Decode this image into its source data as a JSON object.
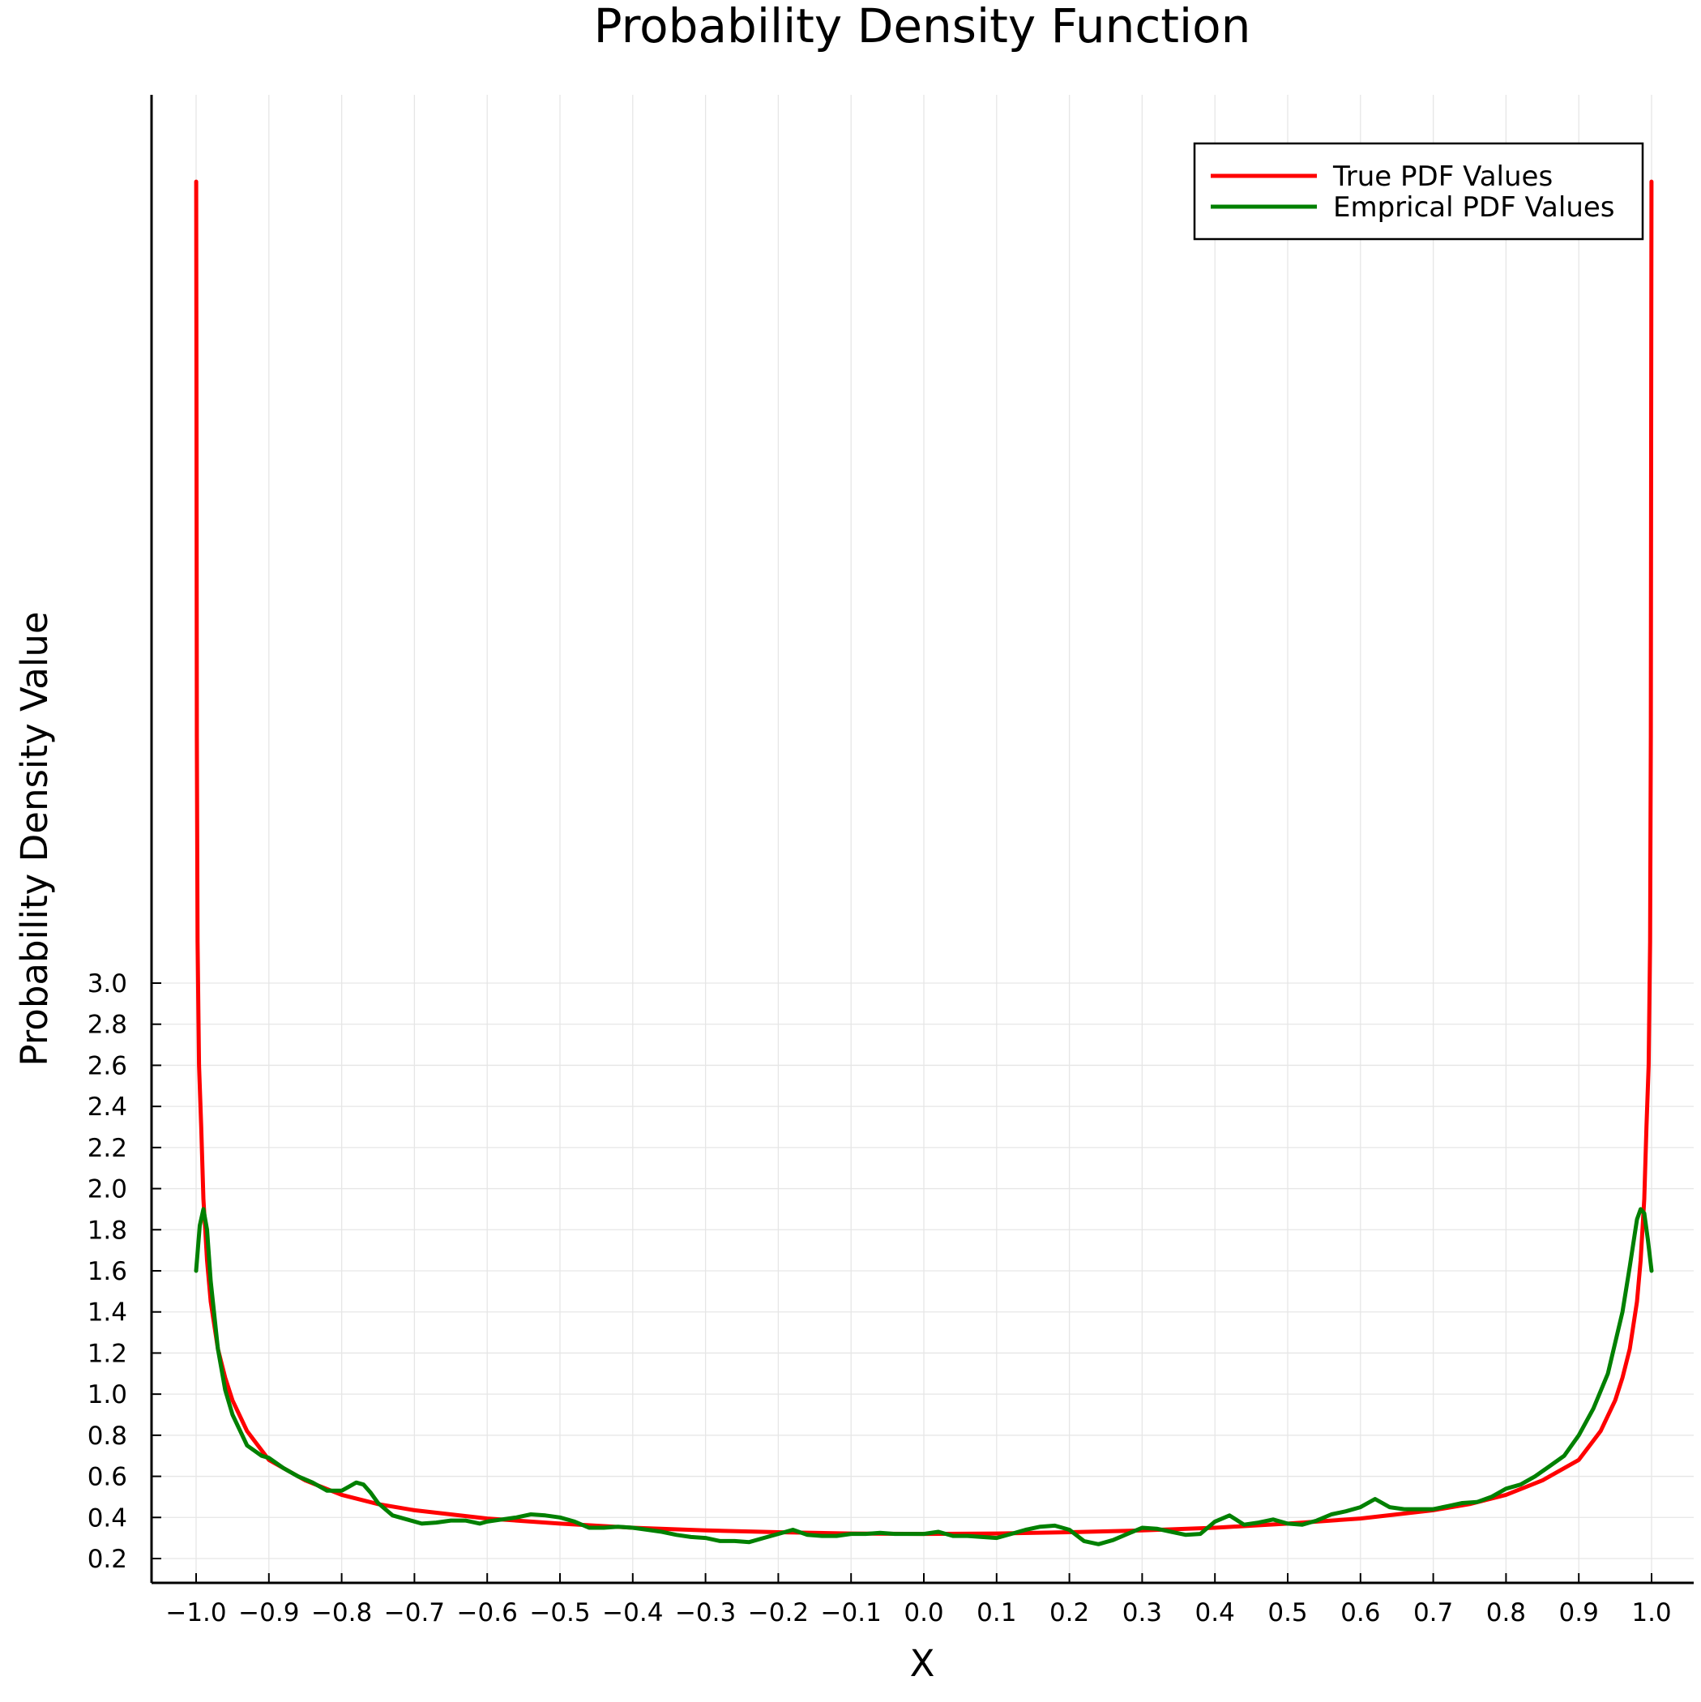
{
  "chart_data": {
    "type": "line",
    "title": "Probability Density Function",
    "xlabel": "X",
    "ylabel": "Probability Density Value",
    "xlim": [
      -1.06,
      1.06
    ],
    "ylim": [
      0.07,
      7.3
    ],
    "grid": true,
    "legend_position": "top-right",
    "x_ticks": [
      "−1.0",
      "−0.9",
      "−0.8",
      "−0.7",
      "−0.6",
      "−0.5",
      "−0.4",
      "−0.3",
      "−0.2",
      "−0.1",
      "0.0",
      "0.1",
      "0.2",
      "0.3",
      "0.4",
      "0.5",
      "0.6",
      "0.7",
      "0.8",
      "0.9",
      "1.0"
    ],
    "y_ticks": [
      "0.2",
      "0.4",
      "0.6",
      "0.8",
      "1.0",
      "1.2",
      "1.4",
      "1.6",
      "1.8",
      "2.0",
      "2.2",
      "2.4",
      "2.6",
      "2.8",
      "3.0"
    ],
    "series": [
      {
        "name": "True PDF Values",
        "color": "#ff0000",
        "x": [
          -0.9999,
          -0.9995,
          -0.999,
          -0.998,
          -0.996,
          -0.993,
          -0.99,
          -0.985,
          -0.98,
          -0.97,
          -0.96,
          -0.95,
          -0.93,
          -0.9,
          -0.85,
          -0.8,
          -0.75,
          -0.7,
          -0.6,
          -0.5,
          -0.4,
          -0.3,
          -0.2,
          -0.1,
          0.0,
          0.1,
          0.2,
          0.3,
          0.4,
          0.5,
          0.6,
          0.7,
          0.75,
          0.8,
          0.85,
          0.9,
          0.93,
          0.95,
          0.96,
          0.97,
          0.98,
          0.985,
          0.99,
          0.993,
          0.996,
          0.998,
          0.999,
          0.9995,
          0.9999
        ],
        "y": [
          6.9,
          6.0,
          4.2,
          3.2,
          2.6,
          2.3,
          1.95,
          1.65,
          1.45,
          1.22,
          1.08,
          0.97,
          0.82,
          0.68,
          0.58,
          0.51,
          0.465,
          0.435,
          0.395,
          0.37,
          0.35,
          0.337,
          0.328,
          0.322,
          0.32,
          0.322,
          0.328,
          0.337,
          0.35,
          0.37,
          0.395,
          0.435,
          0.465,
          0.51,
          0.58,
          0.68,
          0.82,
          0.97,
          1.08,
          1.22,
          1.45,
          1.65,
          1.95,
          2.3,
          2.6,
          3.2,
          4.2,
          6.0,
          6.9
        ]
      },
      {
        "name": "Emprical PDF Values",
        "color": "#008000",
        "x": [
          -1.0,
          -0.995,
          -0.99,
          -0.985,
          -0.98,
          -0.97,
          -0.96,
          -0.95,
          -0.93,
          -0.91,
          -0.9,
          -0.88,
          -0.86,
          -0.84,
          -0.82,
          -0.8,
          -0.79,
          -0.78,
          -0.77,
          -0.76,
          -0.75,
          -0.73,
          -0.71,
          -0.69,
          -0.67,
          -0.65,
          -0.63,
          -0.61,
          -0.6,
          -0.58,
          -0.56,
          -0.54,
          -0.52,
          -0.5,
          -0.48,
          -0.46,
          -0.44,
          -0.42,
          -0.4,
          -0.38,
          -0.36,
          -0.34,
          -0.32,
          -0.3,
          -0.28,
          -0.26,
          -0.24,
          -0.22,
          -0.2,
          -0.18,
          -0.16,
          -0.14,
          -0.12,
          -0.1,
          -0.08,
          -0.06,
          -0.04,
          -0.02,
          0.0,
          0.02,
          0.04,
          0.06,
          0.08,
          0.1,
          0.12,
          0.14,
          0.16,
          0.18,
          0.2,
          0.22,
          0.24,
          0.26,
          0.28,
          0.3,
          0.32,
          0.34,
          0.36,
          0.38,
          0.4,
          0.42,
          0.44,
          0.46,
          0.48,
          0.5,
          0.52,
          0.54,
          0.56,
          0.58,
          0.6,
          0.62,
          0.64,
          0.66,
          0.68,
          0.7,
          0.72,
          0.74,
          0.76,
          0.78,
          0.8,
          0.82,
          0.84,
          0.86,
          0.88,
          0.9,
          0.92,
          0.94,
          0.96,
          0.97,
          0.98,
          0.985,
          0.99,
          0.995,
          1.0
        ],
        "y": [
          1.6,
          1.82,
          1.9,
          1.8,
          1.55,
          1.22,
          1.02,
          0.9,
          0.75,
          0.7,
          0.69,
          0.64,
          0.6,
          0.57,
          0.53,
          0.53,
          0.55,
          0.57,
          0.56,
          0.52,
          0.47,
          0.41,
          0.39,
          0.37,
          0.375,
          0.385,
          0.385,
          0.37,
          0.38,
          0.39,
          0.4,
          0.415,
          0.41,
          0.4,
          0.38,
          0.35,
          0.35,
          0.355,
          0.35,
          0.34,
          0.33,
          0.315,
          0.305,
          0.3,
          0.285,
          0.285,
          0.28,
          0.3,
          0.32,
          0.34,
          0.315,
          0.31,
          0.31,
          0.32,
          0.32,
          0.325,
          0.32,
          0.32,
          0.32,
          0.33,
          0.31,
          0.31,
          0.305,
          0.3,
          0.32,
          0.34,
          0.355,
          0.36,
          0.34,
          0.285,
          0.27,
          0.29,
          0.32,
          0.35,
          0.345,
          0.33,
          0.315,
          0.32,
          0.38,
          0.41,
          0.365,
          0.375,
          0.39,
          0.37,
          0.365,
          0.385,
          0.415,
          0.43,
          0.45,
          0.49,
          0.45,
          0.44,
          0.44,
          0.44,
          0.455,
          0.47,
          0.475,
          0.5,
          0.54,
          0.56,
          0.6,
          0.65,
          0.7,
          0.8,
          0.93,
          1.1,
          1.4,
          1.62,
          1.85,
          1.9,
          1.88,
          1.75,
          1.6
        ]
      }
    ]
  }
}
